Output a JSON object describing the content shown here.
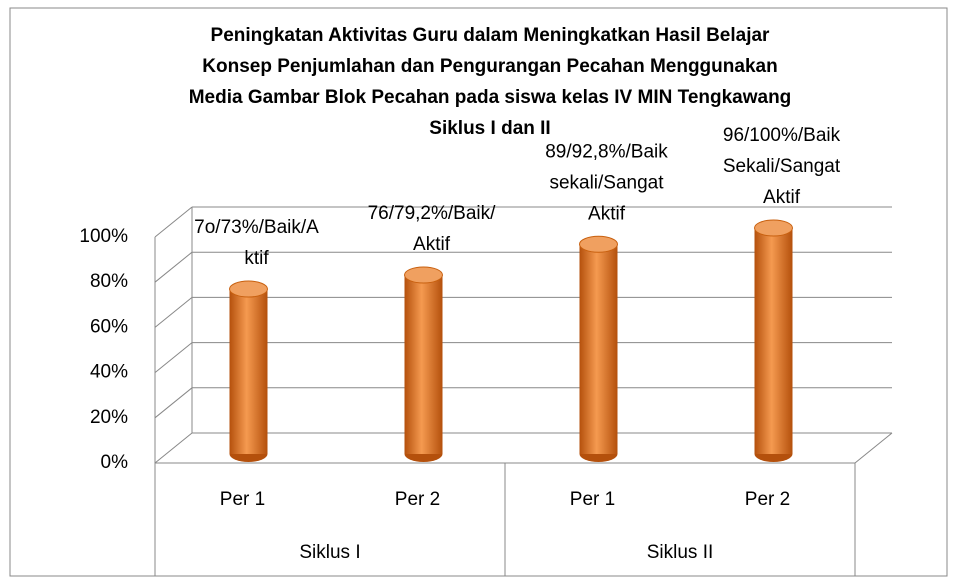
{
  "chart_data": {
    "type": "bar3d",
    "title": [
      "Peningkatan Aktivitas Guru dalam Meningkatkan Hasil Belajar",
      "Konsep Penjumlahan dan Pengurangan Pecahan Menggunakan",
      "Media Gambar Blok Pecahan pada siswa kelas IV MIN Tengkawang",
      "Siklus I dan II"
    ],
    "categories": [
      "Per 1",
      "Per 2",
      "Per 1",
      "Per 2"
    ],
    "groups": [
      "Siklus I",
      "Siklus II"
    ],
    "values": [
      73,
      79.2,
      92.8,
      100
    ],
    "value_labels": [
      [
        "7o/73%/Baik/A",
        "ktif"
      ],
      [
        "76/79,2%/Baik/",
        "Aktif"
      ],
      [
        "89/92,8%/Baik",
        "sekali/Sangat",
        "Aktif"
      ],
      [
        "96/100%/Baik",
        "Sekali/Sangat",
        "Aktif"
      ]
    ],
    "color": "#e46c0a",
    "ylim": [
      0,
      100
    ],
    "yticks": [
      {
        "value": 0,
        "label": "0%"
      },
      {
        "value": 20,
        "label": "20%"
      },
      {
        "value": 40,
        "label": "40%"
      },
      {
        "value": 60,
        "label": "60%"
      },
      {
        "value": 80,
        "label": "80%"
      },
      {
        "value": 100,
        "label": "100%"
      }
    ],
    "grid": true
  }
}
